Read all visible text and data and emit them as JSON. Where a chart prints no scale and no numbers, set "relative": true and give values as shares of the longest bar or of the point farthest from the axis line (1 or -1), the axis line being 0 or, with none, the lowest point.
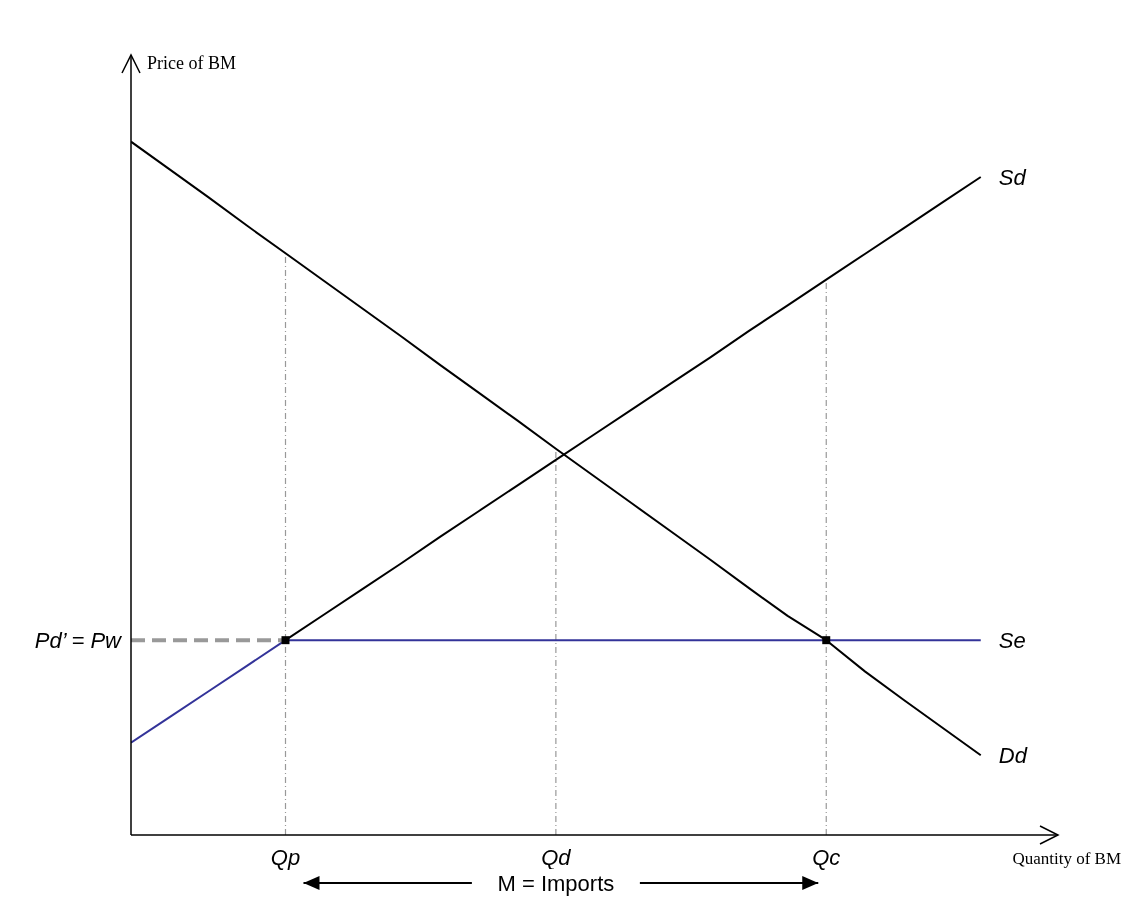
{
  "chart_data": {
    "type": "line",
    "relative": true,
    "xlabel": "Quantity of BM",
    "ylabel": "Price of BM",
    "categories": [
      null,
      null,
      null,
      null,
      "Qp",
      null,
      null,
      null,
      null,
      null,
      null,
      "Qd",
      null,
      null,
      null,
      null,
      null,
      null,
      "Qc",
      null,
      null,
      null,
      null,
      null,
      null
    ],
    "series": [
      {
        "name": "Dd",
        "color": "#000000",
        "values": [
          1,
          0.96,
          0.92,
          0.879,
          0.839,
          0.799,
          0.759,
          0.719,
          0.678,
          0.638,
          0.598,
          0.557,
          0.517,
          0.477,
          0.437,
          0.397,
          0.356,
          0.316,
          0.281,
          0.236,
          0.195,
          0.155,
          0.115,
          null,
          null
        ]
      },
      {
        "name": "Sd",
        "color": "#000000",
        "values": [
          null,
          null,
          null,
          null,
          0.281,
          0.318,
          0.355,
          0.392,
          0.43,
          0.467,
          0.504,
          0.541,
          0.578,
          0.615,
          0.652,
          0.689,
          0.727,
          0.764,
          0.801,
          0.838,
          0.875,
          0.912,
          0.949,
          null,
          null
        ]
      },
      {
        "name": "Se",
        "color": "#333399",
        "values": [
          0.133,
          0.17,
          0.207,
          0.244,
          0.281,
          0.281,
          0.281,
          0.281,
          0.281,
          0.281,
          0.281,
          0.281,
          0.281,
          0.281,
          0.281,
          0.281,
          0.281,
          0.281,
          0.281,
          0.281,
          0.281,
          0.281,
          0.281,
          null,
          null
        ]
      },
      {
        "name": "Pd’ = Pw",
        "color": "#999999",
        "line_style": "dashed",
        "values": [
          0.281,
          0.281,
          0.281,
          0.281,
          0.281,
          null,
          null,
          null,
          null,
          null,
          null,
          null,
          null,
          null,
          null,
          null,
          null,
          null,
          null,
          null,
          null,
          null,
          null,
          null,
          null
        ]
      },
      {
        "type": "scatter",
        "marker": "square",
        "color": "#000000",
        "values": [
          null,
          null,
          null,
          null,
          0.281,
          null,
          null,
          null,
          null,
          null,
          null,
          null,
          null,
          null,
          null,
          null,
          null,
          null,
          0.281,
          null,
          null,
          null,
          null,
          null,
          null
        ]
      }
    ],
    "ref_lines": [
      {
        "axis": "x",
        "value": "Qp",
        "color": "#999999",
        "line_style": "dotted"
      },
      {
        "axis": "x",
        "value": "Qd",
        "color": "#999999",
        "line_style": "dotted"
      },
      {
        "axis": "x",
        "value": "Qc",
        "color": "#999999",
        "line_style": "dotted"
      }
    ],
    "annotations": [
      "M = Imports"
    ]
  }
}
